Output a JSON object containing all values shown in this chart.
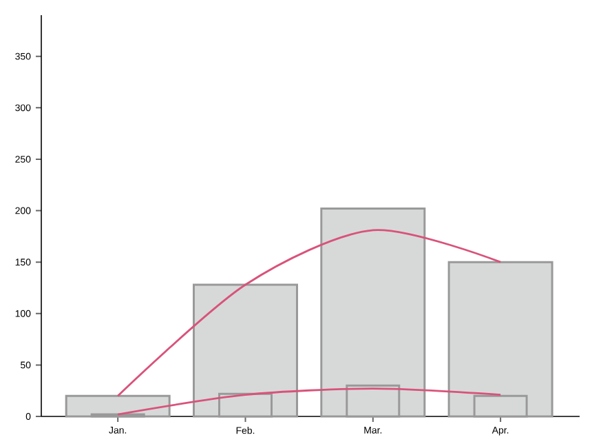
{
  "chart_data": {
    "type": "bar",
    "categories": [
      "Jan.",
      "Feb.",
      "Mar.",
      "Apr."
    ],
    "ylim": [
      0,
      390
    ],
    "yticks": [
      0,
      50,
      100,
      150,
      200,
      250,
      300,
      350
    ],
    "grid": false,
    "marker": "none",
    "series": [
      {
        "color": "#d7d9d9",
        "values": [
          20,
          128,
          202,
          150
        ]
      },
      {
        "color": "#d7d9d9",
        "values": [
          2,
          22,
          30,
          20
        ]
      },
      {
        "type": "line",
        "color": "#d9527a",
        "values": [
          20,
          128,
          181,
          150
        ]
      },
      {
        "type": "line",
        "color": "#d9527a",
        "values": [
          2,
          21,
          27,
          21
        ]
      }
    ]
  }
}
